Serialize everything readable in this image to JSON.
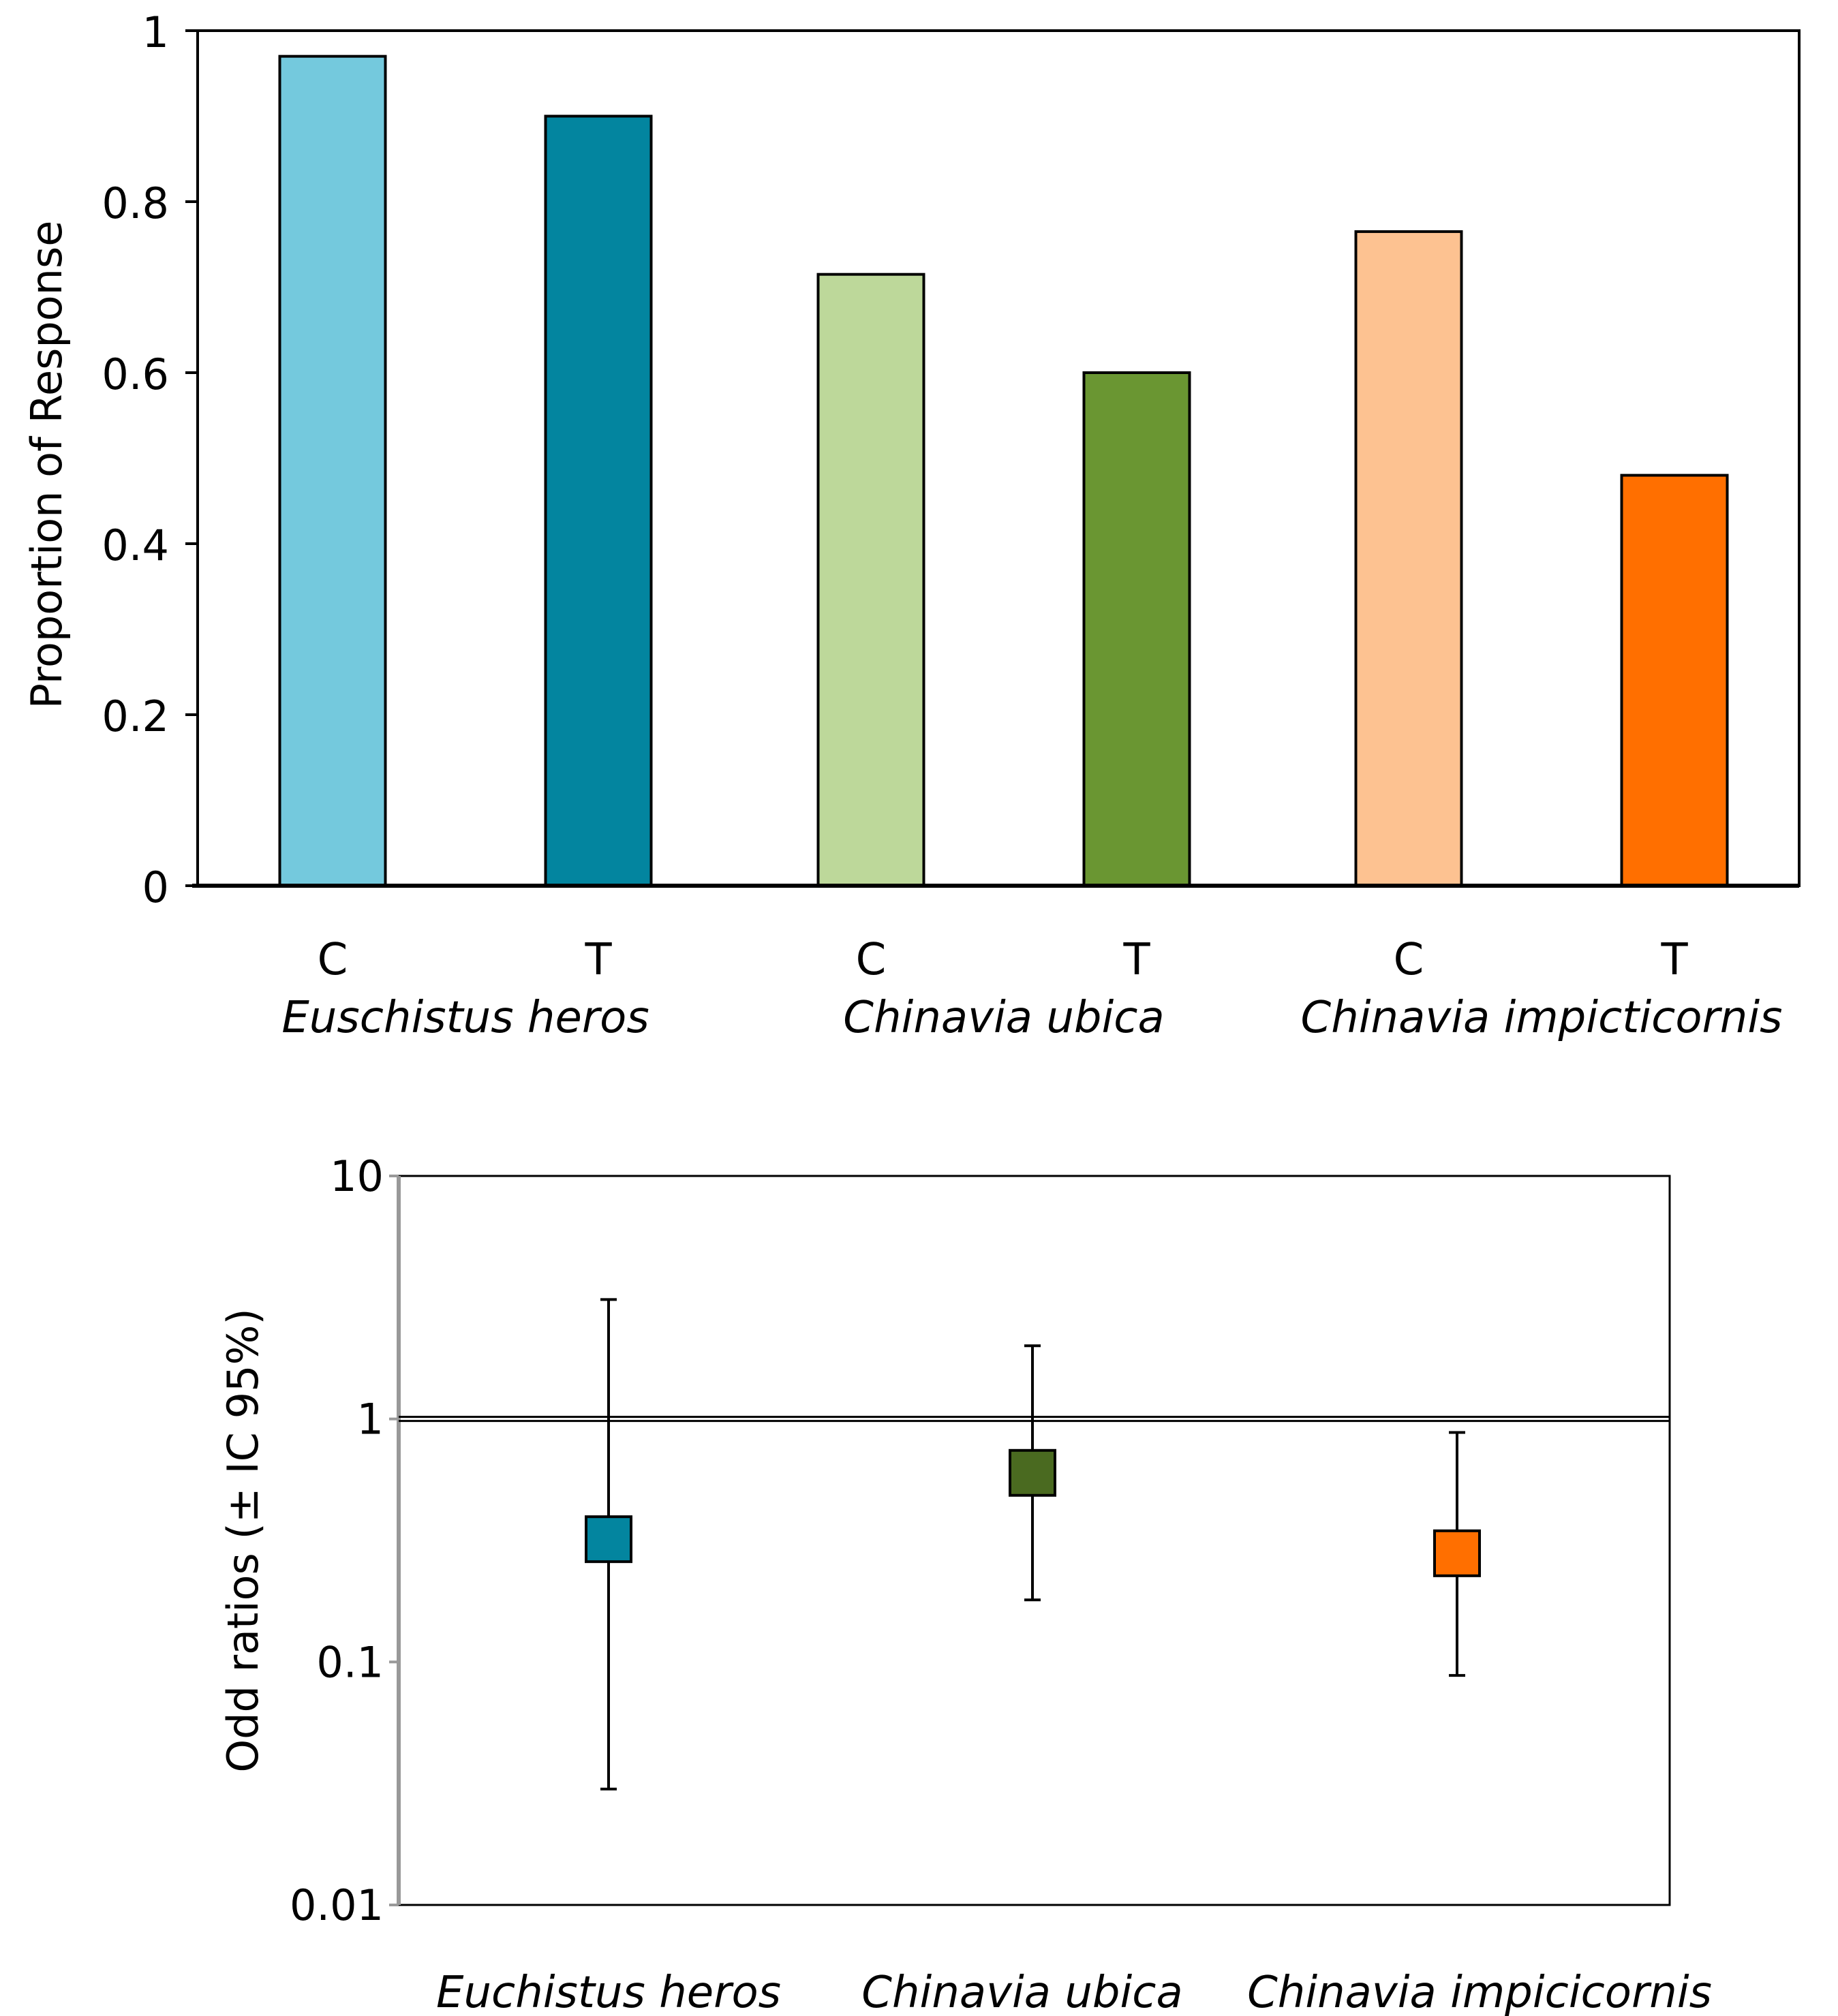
{
  "chart_data": [
    {
      "type": "bar",
      "ylabel": "Proportion of Response",
      "ylim": [
        0,
        1
      ],
      "yticks": [
        0,
        0.2,
        0.4,
        0.6,
        0.8,
        1
      ],
      "ytick_labels": [
        "0",
        "0.2",
        "0.4",
        "0.6",
        "0.8",
        "1"
      ],
      "groups": [
        {
          "species": "Euschistus heros",
          "bars": [
            {
              "category": "C",
              "value": 0.97,
              "color": "#74C9DD"
            },
            {
              "category": "T",
              "value": 0.9,
              "color": "#03859F"
            }
          ]
        },
        {
          "species": "Chinavia ubica",
          "bars": [
            {
              "category": "C",
              "value": 0.715,
              "color": "#BDD89A"
            },
            {
              "category": "T",
              "value": 0.6,
              "color": "#6A9632"
            }
          ]
        },
        {
          "species": "Chinavia impicticornis",
          "bars": [
            {
              "category": "C",
              "value": 0.765,
              "color": "#FDC291"
            },
            {
              "category": "T",
              "value": 0.48,
              "color": "#FF6F00"
            }
          ]
        }
      ]
    },
    {
      "type": "scatter",
      "ylabel": "Odd ratios (± IC 95%)",
      "yscale": "log",
      "ylim": [
        0.01,
        10
      ],
      "yticks": [
        0.01,
        0.1,
        1,
        10
      ],
      "ytick_labels": [
        "0.01",
        "0.1",
        "1",
        "10"
      ],
      "reference_line": 1,
      "points": [
        {
          "species": "Euchistus heros",
          "value": 0.32,
          "ci": [
            0.03,
            3.1
          ],
          "color": "#03859F"
        },
        {
          "species": "Chinavia ubica",
          "value": 0.6,
          "ci": [
            0.18,
            2.0
          ],
          "color": "#4A6A20"
        },
        {
          "species": "Chinavia impicicornis",
          "value": 0.28,
          "ci": [
            0.088,
            0.88
          ],
          "color": "#FF6F00"
        }
      ]
    }
  ]
}
